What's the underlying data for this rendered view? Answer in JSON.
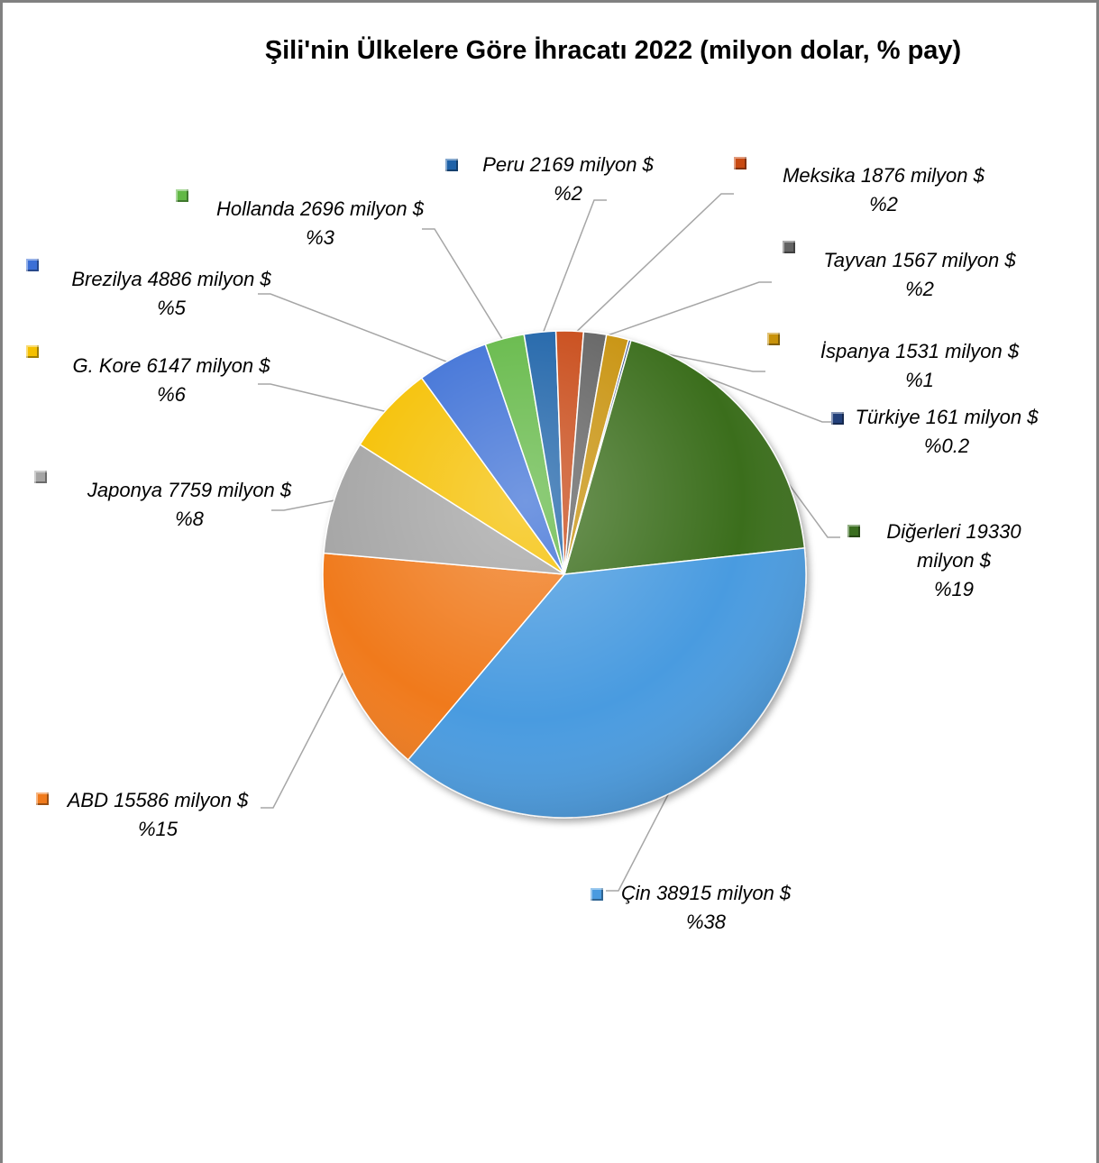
{
  "chart_data": {
    "type": "pie",
    "title": "Şili'nin Ülkelere Göre İhracatı 2022 (milyon dolar, % pay)",
    "slices": [
      {
        "name": "Diğerleri",
        "value": 19330,
        "color": "#3a6e1f",
        "label": "Diğerleri 19330 milyon $",
        "pct": "%19"
      },
      {
        "name": "Çin",
        "value": 38915,
        "color": "#4a9be0",
        "label": "Çin 38915 milyon $",
        "pct": "%38"
      },
      {
        "name": "ABD",
        "value": 15586,
        "color": "#f07a1c",
        "label": "ABD 15586 milyon $",
        "pct": "%15"
      },
      {
        "name": "Japonya",
        "value": 7759,
        "color": "#a5a5a5",
        "label": "Japonya 7759 milyon $",
        "pct": "%8"
      },
      {
        "name": "G. Kore",
        "value": 6147,
        "color": "#f5c000",
        "label": "G. Kore 6147 milyon $",
        "pct": "%6"
      },
      {
        "name": "Brezilya",
        "value": 4886,
        "color": "#3c6fd6",
        "label": "Brezilya 4886 milyon $",
        "pct": "%5"
      },
      {
        "name": "Hollanda",
        "value": 2696,
        "color": "#62b845",
        "label": "Hollanda 2696 milyon $",
        "pct": "%3"
      },
      {
        "name": "Peru",
        "value": 2169,
        "color": "#1f62a8",
        "label": "Peru 2169 milyon $",
        "pct": "%2"
      },
      {
        "name": "Meksika",
        "value": 1876,
        "color": "#c84a12",
        "label": "Meksika 1876 milyon $",
        "pct": "%2"
      },
      {
        "name": "Tayvan",
        "value": 1567,
        "color": "#636363",
        "label": "Tayvan 1567 milyon $",
        "pct": "%2"
      },
      {
        "name": "İspanya",
        "value": 1531,
        "color": "#c8920a",
        "label": "İspanya 1531 milyon $",
        "pct": "%1"
      },
      {
        "name": "Türkiye",
        "value": 161,
        "color": "#23407a",
        "label": "Türkiye 161 milyon $",
        "pct": "%0.2"
      }
    ]
  }
}
